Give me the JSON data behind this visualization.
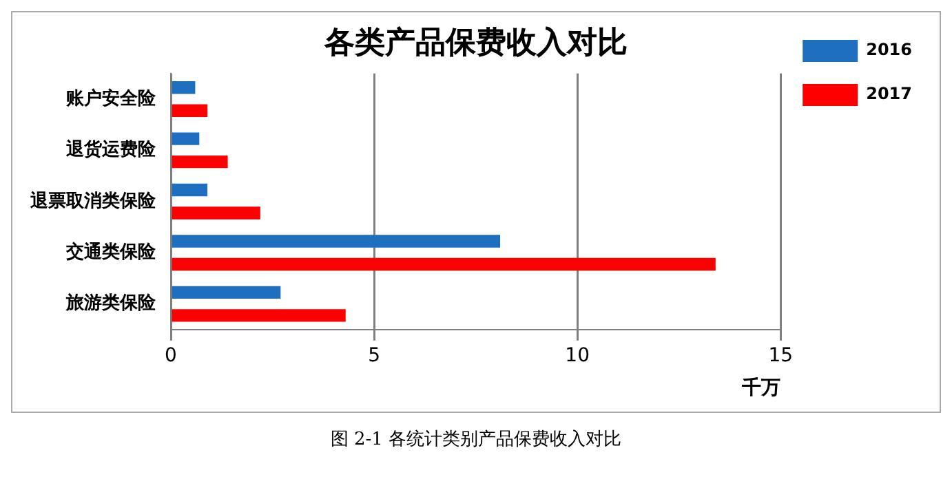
{
  "chart_data": {
    "type": "bar",
    "orientation": "horizontal",
    "title": "各类产品保费收入对比",
    "xlabel": "千万",
    "categories": [
      "账户安全险",
      "退货运费险",
      "退票取消类保险",
      "交通类保险",
      "旅游类保险"
    ],
    "series": [
      {
        "name": "2016",
        "color": "#1f6fc0",
        "values": [
          0.6,
          0.7,
          0.9,
          8.1,
          2.7
        ]
      },
      {
        "name": "2017",
        "color": "#ff0000",
        "values": [
          0.9,
          1.4,
          2.2,
          13.4,
          4.3
        ]
      }
    ],
    "xlim": [
      0,
      15
    ],
    "xticks": [
      0,
      5,
      10,
      15
    ],
    "grid": "x",
    "legend": "top right",
    "annotations": [
      "图 2-1  各统计类别产品保费收入对比"
    ]
  }
}
